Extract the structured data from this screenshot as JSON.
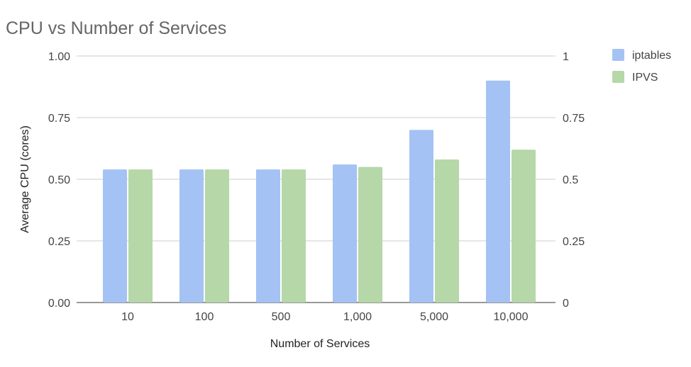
{
  "chart_data": {
    "type": "bar",
    "title": "CPU vs Number of Services",
    "xlabel": "Number of Services",
    "ylabel": "Average CPU (cores)",
    "categories": [
      "10",
      "100",
      "500",
      "1,000",
      "5,000",
      "10,000"
    ],
    "series": [
      {
        "name": "iptables",
        "color": "#a4c2f4",
        "values": [
          0.54,
          0.54,
          0.54,
          0.56,
          0.7,
          0.9
        ]
      },
      {
        "name": "IPVS",
        "color": "#b6d7a8",
        "values": [
          0.54,
          0.54,
          0.54,
          0.55,
          0.58,
          0.62
        ]
      }
    ],
    "ylim": [
      0,
      1
    ],
    "left_ticks": [
      "0.00",
      "0.25",
      "0.50",
      "0.75",
      "1.00"
    ],
    "right_ticks": [
      "0",
      "0.25",
      "0.5",
      "0.75",
      "1"
    ],
    "tick_values": [
      0,
      0.25,
      0.5,
      0.75,
      1
    ],
    "grid": true,
    "legend_position": "top-right"
  }
}
